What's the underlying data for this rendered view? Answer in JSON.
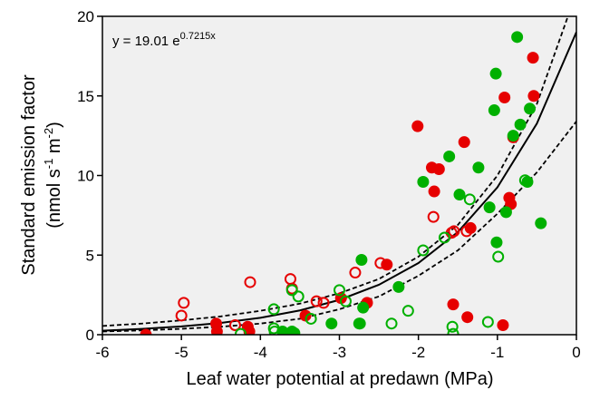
{
  "chart_data": {
    "type": "scatter",
    "xlabel": "Leaf water potential at predawn (MPa)",
    "ylabel": [
      "Standard emission factor",
      [
        {
          "text": "(nmol s"
        },
        {
          "sup": "-1"
        },
        {
          "text": " m"
        },
        {
          "sup": "-2"
        },
        {
          "text": ")"
        }
      ]
    ],
    "annotation": {
      "text": "y = 19.01 e",
      "sup": "0.7215x"
    },
    "xlim": [
      -6,
      0
    ],
    "xticks": [
      -6,
      -5,
      -4,
      -3,
      -2,
      -1,
      0
    ],
    "ylim": [
      0,
      20
    ],
    "yticks": [
      0,
      5,
      10,
      15,
      20
    ],
    "grid": false,
    "background": "#f0f0f0",
    "series": [
      {
        "color": "#e60000",
        "marker": "filled",
        "x": [
          -5.45,
          -4.56,
          -4.55,
          -4.16,
          -4.14,
          -3.7,
          -3.43,
          -2.98,
          -2.65,
          -2.4,
          -2.01,
          -1.83,
          -1.8,
          -1.74,
          -1.42,
          -1.56,
          -1.38,
          -1.34,
          -0.91,
          -0.85,
          -0.83,
          -0.93,
          -0.55,
          -0.54,
          -0.8
        ],
        "y": [
          0.0,
          0.7,
          0.2,
          0.5,
          0.2,
          0.05,
          1.2,
          2.3,
          2.0,
          4.4,
          13.1,
          10.5,
          9.0,
          10.4,
          12.1,
          1.9,
          1.1,
          6.7,
          14.9,
          8.6,
          8.2,
          0.6,
          17.4,
          15.0,
          12.4
        ]
      },
      {
        "color": "#e60000",
        "marker": "open",
        "x": [
          -4.97,
          -5.0,
          -4.32,
          -4.13,
          -3.62,
          -3.6,
          -3.29,
          -3.2,
          -2.8,
          -2.48,
          -1.81,
          -1.55,
          -1.39,
          -1.58
        ],
        "y": [
          2.0,
          1.2,
          0.6,
          3.3,
          3.5,
          2.9,
          2.1,
          2.0,
          3.9,
          4.5,
          7.4,
          6.5,
          6.5,
          6.4
        ]
      },
      {
        "color": "#00b000",
        "marker": "filled",
        "x": [
          -3.72,
          -3.6,
          -3.57,
          -3.1,
          -2.75,
          -2.72,
          -2.74,
          -2.7,
          -2.25,
          -1.94,
          -1.61,
          -1.48,
          -1.24,
          -1.04,
          -1.02,
          -1.1,
          -1.01,
          -0.89,
          -0.8,
          -0.75,
          -0.71,
          -0.62,
          -0.59,
          -0.45
        ],
        "y": [
          0.2,
          0.2,
          0.1,
          0.7,
          0.7,
          4.7,
          0.7,
          1.7,
          3.0,
          9.6,
          11.2,
          8.8,
          10.5,
          14.1,
          16.4,
          8.0,
          5.8,
          7.7,
          12.5,
          18.7,
          13.2,
          9.6,
          14.2,
          7.0
        ]
      },
      {
        "color": "#00b000",
        "marker": "open",
        "x": [
          -4.25,
          -3.82,
          -3.83,
          -3.83,
          -3.6,
          -3.52,
          -3.36,
          -3.0,
          -2.92,
          -2.34,
          -2.13,
          -1.94,
          -1.67,
          -1.35,
          -1.57,
          -1.56,
          -1.12,
          -0.99,
          -0.65
        ],
        "y": [
          0.05,
          0.2,
          0.4,
          1.6,
          2.8,
          2.4,
          1.0,
          2.8,
          2.1,
          0.7,
          1.5,
          5.3,
          6.1,
          8.5,
          0.5,
          0.05,
          0.8,
          4.9,
          9.7
        ]
      }
    ],
    "curves": [
      {
        "color": "#000000",
        "dash": false,
        "x": [
          -6,
          -5.5,
          -5,
          -4.5,
          -4,
          -3.5,
          -3,
          -2.5,
          -2,
          -1.5,
          -1,
          -0.5,
          0
        ],
        "y": [
          0.251,
          0.36,
          0.517,
          0.741,
          1.063,
          1.525,
          2.187,
          3.137,
          4.499,
          6.452,
          9.255,
          13.27,
          19.01
        ]
      },
      {
        "color": "#000000",
        "dash": true,
        "x": [
          -6,
          -5.5,
          -5,
          -4.5,
          -4,
          -3.5,
          -3,
          -2.5,
          -2,
          -1.5,
          -1,
          -0.5,
          0
        ],
        "y": [
          0.55,
          0.7,
          0.9,
          1.15,
          1.5,
          1.95,
          2.6,
          3.5,
          4.9,
          6.9,
          10.0,
          14.5,
          21.5
        ]
      },
      {
        "color": "#000000",
        "dash": true,
        "x": [
          -6,
          -5.5,
          -5,
          -4.5,
          -4,
          -3.5,
          -3,
          -2.5,
          -2,
          -1.5,
          -1,
          -0.5,
          0
        ],
        "y": [
          0.2,
          0.27,
          0.37,
          0.5,
          0.7,
          1.0,
          1.6,
          2.4,
          3.7,
          5.3,
          7.6,
          10.2,
          13.4
        ]
      }
    ]
  }
}
